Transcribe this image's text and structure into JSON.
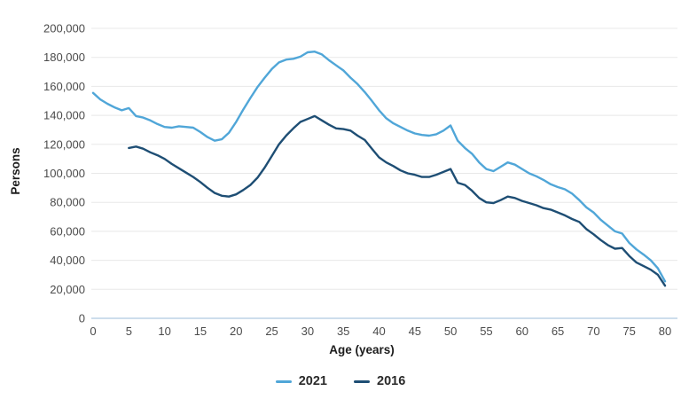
{
  "chart_data": {
    "type": "line",
    "title": "",
    "xlabel": "Age (years)",
    "ylabel": "Persons",
    "xlim": [
      0,
      80
    ],
    "ylim": [
      0,
      200000
    ],
    "x_ticks": [
      0,
      5,
      10,
      15,
      20,
      25,
      30,
      35,
      40,
      45,
      50,
      55,
      60,
      65,
      70,
      75,
      80
    ],
    "y_ticks": [
      0,
      20000,
      40000,
      60000,
      80000,
      100000,
      120000,
      140000,
      160000,
      180000,
      200000
    ],
    "y_tick_labels": [
      "0",
      "20,000",
      "40,000",
      "60,000",
      "80,000",
      "100,000",
      "120,000",
      "140,000",
      "160,000",
      "180,000",
      "200,000"
    ],
    "grid": "horizontal",
    "legend_position": "bottom",
    "colors": {
      "gridline": "#e8e8e8",
      "zero_axis_line": "#cdddec",
      "tick_text": "#4b4b4b",
      "axis_title_text": "#1d1d1d",
      "background": "#ffffff"
    },
    "series": [
      {
        "name": "2021",
        "color": "#50a6d8",
        "ages": [
          0,
          1,
          2,
          3,
          4,
          5,
          6,
          7,
          8,
          9,
          10,
          11,
          12,
          13,
          14,
          15,
          16,
          17,
          18,
          19,
          20,
          21,
          22,
          23,
          24,
          25,
          26,
          27,
          28,
          29,
          30,
          31,
          32,
          33,
          34,
          35,
          36,
          37,
          38,
          39,
          40,
          41,
          42,
          43,
          44,
          45,
          46,
          47,
          48,
          49,
          50,
          51,
          52,
          53,
          54,
          55,
          56,
          57,
          58,
          59,
          60,
          61,
          62,
          63,
          64,
          65,
          66,
          67,
          68,
          69,
          70,
          71,
          72,
          73,
          74,
          75,
          76,
          77,
          78,
          79,
          80
        ],
        "values": [
          155500,
          151000,
          148000,
          145500,
          143500,
          145000,
          139500,
          138500,
          136500,
          134000,
          132000,
          131500,
          132500,
          132000,
          131500,
          128500,
          125000,
          122500,
          123500,
          128000,
          135500,
          144000,
          152000,
          159500,
          166000,
          172000,
          176500,
          178500,
          179000,
          180500,
          183500,
          184000,
          182000,
          178000,
          174500,
          171000,
          166000,
          161500,
          156000,
          150000,
          143500,
          138000,
          134500,
          132000,
          129500,
          127500,
          126500,
          126000,
          127000,
          129500,
          133000,
          122500,
          117500,
          113500,
          107500,
          103000,
          101500,
          104500,
          107500,
          106000,
          103000,
          100000,
          98000,
          95500,
          92500,
          90500,
          89000,
          86000,
          81500,
          76500,
          73000,
          68000,
          64000,
          60000,
          58500,
          52000,
          47500,
          44000,
          40000,
          34500,
          25500
        ]
      },
      {
        "name": "2016",
        "color": "#1e4e74",
        "ages": [
          5,
          6,
          7,
          8,
          9,
          10,
          11,
          12,
          13,
          14,
          15,
          16,
          17,
          18,
          19,
          20,
          21,
          22,
          23,
          24,
          25,
          26,
          27,
          28,
          29,
          30,
          31,
          32,
          33,
          34,
          35,
          36,
          37,
          38,
          39,
          40,
          41,
          42,
          43,
          44,
          45,
          46,
          47,
          48,
          49,
          50,
          51,
          52,
          53,
          54,
          55,
          56,
          57,
          58,
          59,
          60,
          61,
          62,
          63,
          64,
          65,
          66,
          67,
          68,
          69,
          70,
          71,
          72,
          73,
          74,
          75,
          76,
          77,
          78,
          79,
          80
        ],
        "values": [
          117500,
          118500,
          117000,
          114500,
          112500,
          110000,
          106500,
          103500,
          100500,
          97500,
          94000,
          90000,
          86500,
          84500,
          84000,
          85500,
          88500,
          92000,
          97000,
          104000,
          112000,
          120000,
          126000,
          131000,
          135500,
          137500,
          139500,
          136500,
          133500,
          131000,
          130500,
          129500,
          126000,
          123000,
          117000,
          111000,
          107500,
          105000,
          102000,
          100000,
          99000,
          97500,
          97500,
          99000,
          101000,
          103000,
          93500,
          92000,
          88000,
          83000,
          80000,
          79500,
          81500,
          84000,
          83000,
          81000,
          79500,
          78000,
          76000,
          75000,
          73000,
          71000,
          68500,
          66500,
          61500,
          58000,
          54000,
          50500,
          48000,
          48500,
          43000,
          38500,
          36000,
          33500,
          30000,
          22500
        ]
      }
    ]
  }
}
